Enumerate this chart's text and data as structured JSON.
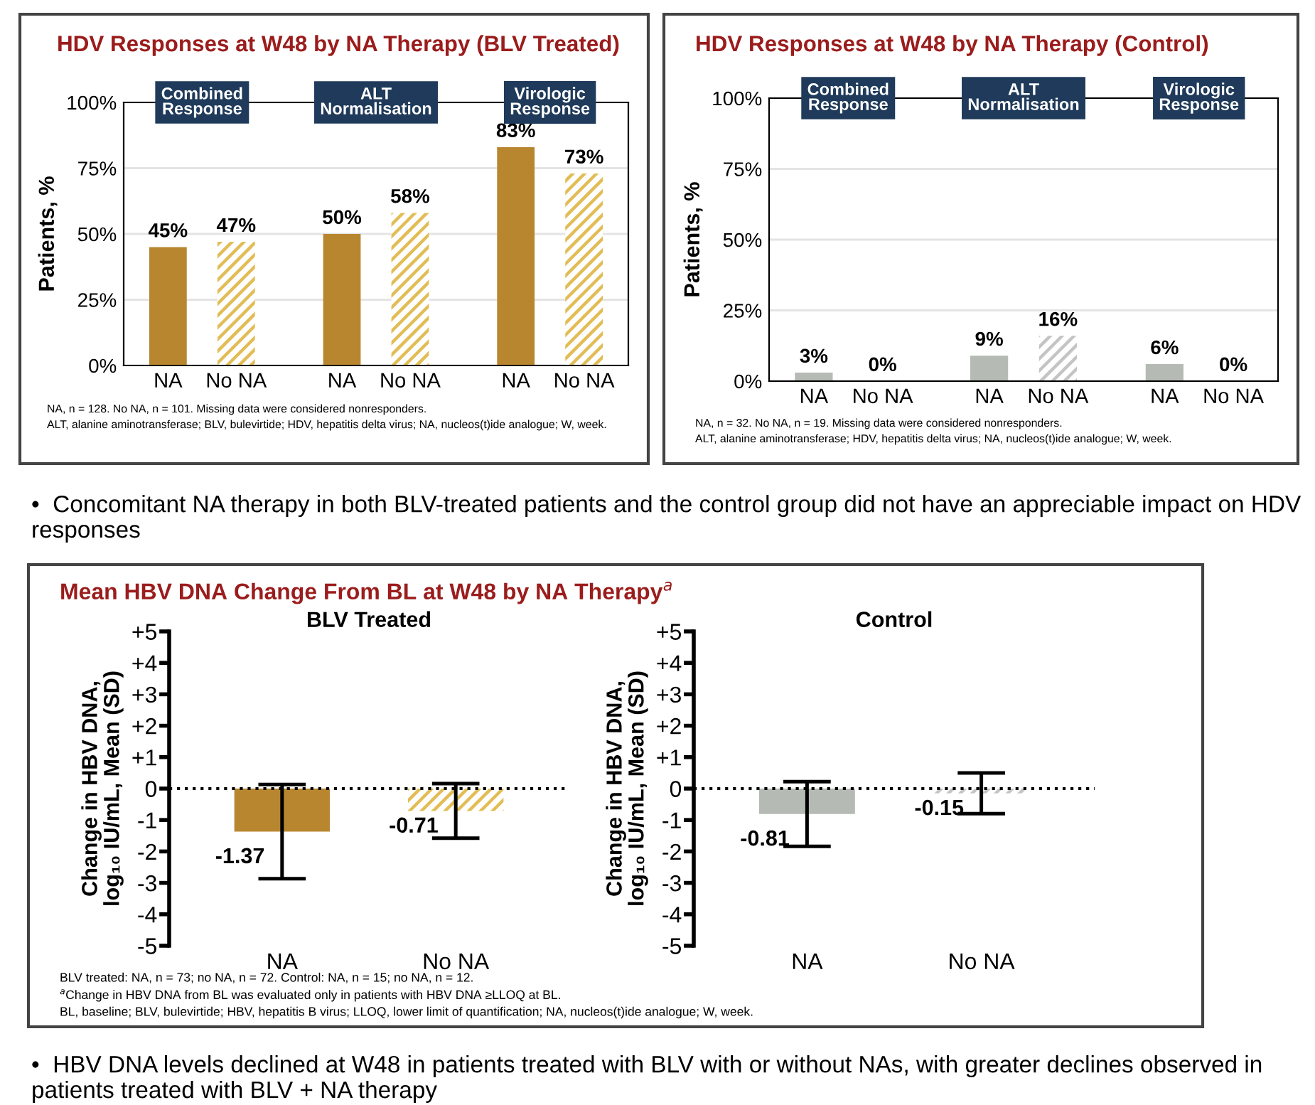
{
  "chart_data": [
    {
      "type": "bar",
      "title": "HDV Responses at W48 by NA Therapy (BLV Treated)",
      "ylabel": "Patients, %",
      "categories": [
        "NA",
        "No NA",
        "NA",
        "No NA",
        "NA",
        "No NA"
      ],
      "values": [
        45,
        47,
        50,
        58,
        83,
        73
      ],
      "colors": [
        "#b8862f",
        "#e2bd55",
        "#b8862f",
        "#e2bd55",
        "#b8862f",
        "#e2bd55"
      ],
      "value_labels": [
        "45%",
        "47%",
        "50%",
        "58%",
        "83%",
        "73%"
      ],
      "ylim": [
        0,
        100
      ],
      "yticks": [
        {
          "value": 0,
          "label": "0%"
        },
        {
          "value": 25,
          "label": "25%"
        },
        {
          "value": 50,
          "label": "50%"
        },
        {
          "value": 75,
          "label": "75%"
        },
        {
          "value": 100,
          "label": "100%"
        }
      ],
      "grid": "y",
      "annotations": [
        "Combined Response",
        "ALT Normalisation",
        "Virologic Response",
        "NA, n = 128. No NA, n = 101. Missing data were considered nonresponders.",
        "ALT, alanine aminotransferase; BLV, bulevirtide; HDV, hepatitis delta virus; NA, nucleos(t)ide analogue; W, week."
      ]
    },
    {
      "type": "bar",
      "title": "HDV Responses at W48 by NA Therapy (Control)",
      "ylabel": "Patients, %",
      "categories": [
        "NA",
        "No NA",
        "NA",
        "No NA",
        "NA",
        "No NA"
      ],
      "values": [
        3,
        0,
        9,
        16,
        6,
        0
      ],
      "colors": [
        "#b5bab5",
        "#c4c4c4",
        "#b5bab5",
        "#c4c4c4",
        "#b5bab5",
        "#c4c4c4"
      ],
      "value_labels": [
        "3%",
        "0%",
        "9%",
        "16%",
        "6%",
        "0%"
      ],
      "ylim": [
        0,
        100
      ],
      "yticks": [
        {
          "value": 0,
          "label": "0%"
        },
        {
          "value": 25,
          "label": "25%"
        },
        {
          "value": 50,
          "label": "50%"
        },
        {
          "value": 75,
          "label": "75%"
        },
        {
          "value": 100,
          "label": "100%"
        }
      ],
      "grid": "y",
      "annotations": [
        "Combined Response",
        "ALT Normalisation",
        "Virologic Response",
        "NA, n = 32. No NA, n = 19. Missing data were considered nonresponders.",
        "ALT, alanine aminotransferase; HDV, hepatitis delta virus; NA, nucleos(t)ide analogue; W, week."
      ]
    },
    {
      "type": "bar",
      "title": "Mean HBV DNA Change From BL at W48 by NA Therapy$^{a}$",
      "subtitle": "BLV Treated",
      "ylabel": "Change in HBV DNA,\nlog₁₀ IU/mL, Mean (SD)",
      "categories": [
        "NA",
        "No NA"
      ],
      "values": [
        -1.37,
        -0.71
      ],
      "errors": [
        1.5,
        0.87
      ],
      "colors": [
        "#b8862f",
        "#e2bd55"
      ],
      "value_labels": [
        "-1.37",
        "-0.71"
      ],
      "ylim": [
        -5,
        5
      ],
      "yticks": [
        -5,
        -4,
        -3,
        -2,
        -1,
        0,
        {
          "value": 1,
          "label": "+1"
        },
        {
          "value": 2,
          "label": "+2"
        },
        {
          "value": 3,
          "label": "+3"
        },
        {
          "value": 4,
          "label": "+4"
        },
        {
          "value": 5,
          "label": "+5"
        }
      ],
      "ref_lines": [
        {
          "axis": "y",
          "value": 0,
          "color": "#000000",
          "line_style": "dotted"
        }
      ],
      "annotations": [
        "BLV treated: NA, n = 73; no NA, n = 72. Control: NA, n = 15; no NA, n = 12.",
        "$^{a}$Change in HBV DNA from BL was evaluated only in patients with HBV DNA ≥LLOQ at BL.",
        "BL, baseline; BLV, bulevirtide; HBV, hepatitis B virus; LLOQ, lower limit of quantification; NA, nucleos(t)ide analogue; W, week."
      ]
    },
    {
      "type": "bar",
      "subtitle": "Control",
      "ylabel": "Change in HBV DNA,\nlog₁₀ IU/mL, Mean (SD)",
      "categories": [
        "NA",
        "No NA"
      ],
      "values": [
        -0.81,
        -0.15
      ],
      "errors": [
        1.03,
        0.65
      ],
      "colors": [
        "#b5bab5",
        "#c4c4c4"
      ],
      "value_labels": [
        "-0.81",
        "-0.15"
      ],
      "ylim": [
        -5,
        5
      ],
      "yticks": [
        -5,
        -4,
        -3,
        -2,
        -1,
        0,
        {
          "value": 1,
          "label": "+1"
        },
        {
          "value": 2,
          "label": "+2"
        },
        {
          "value": 3,
          "label": "+3"
        },
        {
          "value": 4,
          "label": "+4"
        },
        {
          "value": 5,
          "label": "+5"
        }
      ],
      "ref_lines": [
        {
          "axis": "y",
          "value": 0,
          "color": "#000000",
          "line_style": "dotted"
        }
      ]
    },
    {
      "type": "other",
      "annotations": [
        "•  Concomitant NA therapy in both BLV-treated patients and the control group did not have an appreciable impact on HDV responses",
        "•  HBV DNA levels declined at W48 in patients treated with BLV with or without NAs, with greater declines observed in patients treated with BLV + NA therapy"
      ]
    }
  ]
}
